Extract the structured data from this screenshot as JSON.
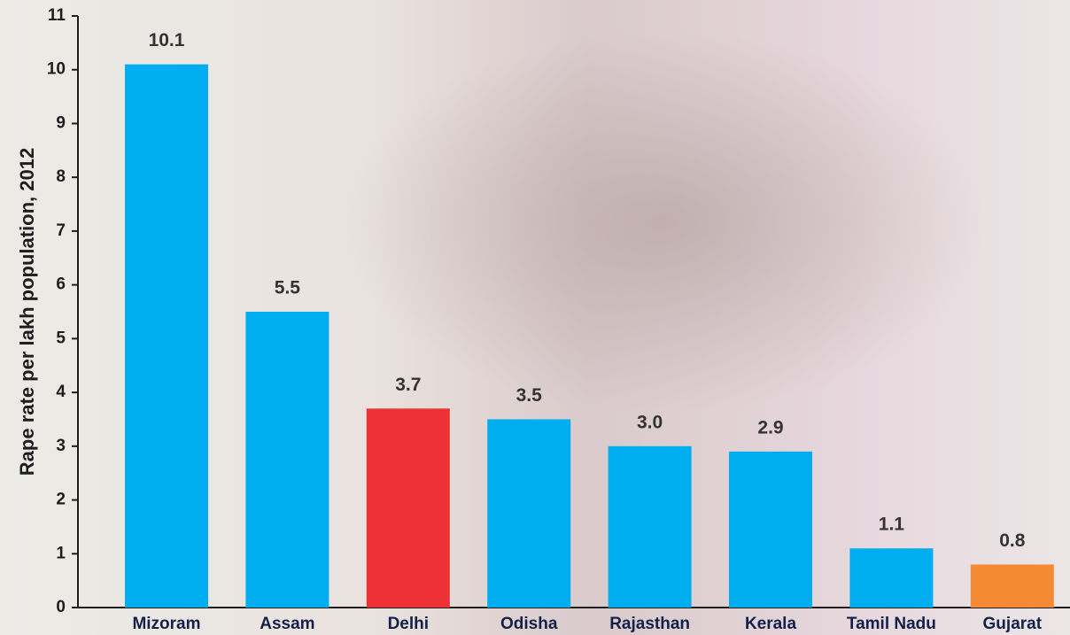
{
  "chart_data": {
    "type": "bar",
    "y_label": "Rape rate per lakh population, 2012",
    "categories": [
      "Mizoram",
      "Assam",
      "Delhi",
      "Odisha",
      "Rajasthan",
      "Kerala",
      "Tamil Nadu",
      "Gujarat"
    ],
    "values": [
      10.1,
      5.5,
      3.7,
      3.5,
      3.0,
      2.9,
      1.1,
      0.8
    ],
    "value_labels": [
      "10.1",
      "5.5",
      "3.7",
      "3.5",
      "3.0",
      "2.9",
      "1.1",
      "0.8"
    ],
    "colors": [
      "#00aeef",
      "#00aeef",
      "#ee3137",
      "#00aeef",
      "#00aeef",
      "#00aeef",
      "#00aeef",
      "#f58a35"
    ],
    "ylim": [
      0,
      11
    ],
    "yticks": [
      0,
      1,
      2,
      3,
      4,
      5,
      6,
      7,
      8,
      9,
      10,
      11
    ],
    "grid": false
  }
}
